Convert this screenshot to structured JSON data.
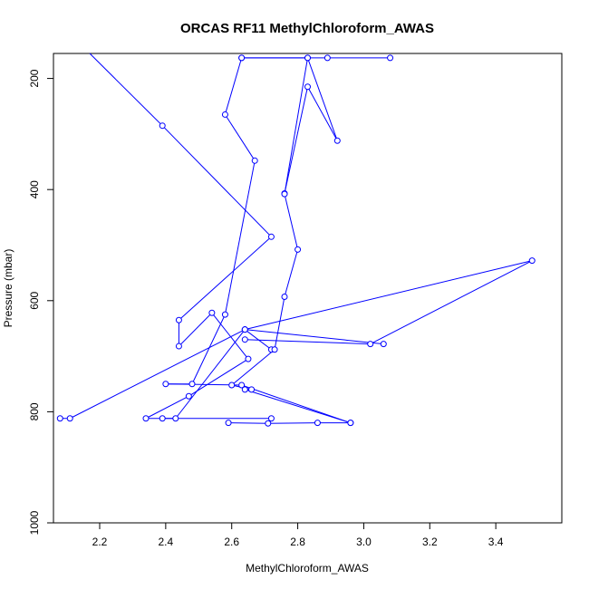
{
  "chart_data": {
    "type": "line",
    "title": "ORCAS RF11 MethylChloroform_AWAS",
    "xlabel": "MethylChloroform_AWAS",
    "ylabel": "Pressure (mbar)",
    "xlim": [
      2.06,
      3.6
    ],
    "ylim": [
      1000,
      155
    ],
    "y_reversed": true,
    "grid": false,
    "legend": "none",
    "x_ticks": [
      2.2,
      2.4,
      2.6,
      2.8,
      3.0,
      3.2,
      3.4
    ],
    "x_tick_labels": [
      "2.2",
      "2.4",
      "2.6",
      "2.8",
      "3.0",
      "3.2",
      "3.4"
    ],
    "y_ticks": [
      200,
      400,
      600,
      800,
      1000
    ],
    "y_tick_labels": [
      "200",
      "400",
      "600",
      "800",
      "1000"
    ],
    "series": [
      {
        "color": "#0000ff",
        "points_visible_start": {
          "x": 2.17,
          "y": 155,
          "hidden_marker": true
        },
        "x": [
          2.39,
          2.72,
          2.44,
          2.44,
          2.54,
          2.65,
          2.47,
          2.34,
          2.72,
          2.59,
          2.71,
          2.86,
          2.96,
          2.63,
          2.4,
          2.48,
          2.58,
          2.67,
          2.58,
          2.63,
          2.83,
          2.92,
          2.83,
          2.76,
          2.72,
          2.64,
          2.43,
          2.39,
          2.63,
          2.89,
          3.08,
          2.83,
          2.76,
          2.8,
          2.76,
          2.73,
          2.6,
          2.66,
          2.64,
          2.96,
          2.64,
          3.02,
          3.51,
          2.64,
          3.06,
          2.64,
          2.11,
          2.08
        ],
        "y": [
          285,
          485,
          635,
          682,
          622,
          705,
          772,
          812,
          812,
          820,
          821,
          820,
          820,
          752,
          750,
          750,
          625,
          348,
          265,
          163,
          163,
          312,
          215,
          407,
          688,
          652,
          812,
          812,
          163,
          163,
          163,
          163,
          408,
          508,
          593,
          688,
          752,
          760,
          760,
          820,
          670,
          678,
          528,
          652,
          678,
          652,
          812,
          812
        ],
        "connect": [
          [
            0,
            1
          ],
          [
            1,
            2
          ],
          [
            2,
            3
          ],
          [
            3,
            4
          ],
          [
            4,
            5
          ],
          [
            5,
            6
          ],
          [
            6,
            7
          ],
          [
            7,
            8
          ],
          [
            9,
            10
          ],
          [
            10,
            11
          ],
          [
            11,
            12
          ],
          [
            12,
            13
          ],
          [
            13,
            14
          ],
          [
            14,
            15
          ],
          [
            15,
            16
          ],
          [
            16,
            17
          ],
          [
            17,
            18
          ],
          [
            18,
            19
          ],
          [
            19,
            20
          ],
          [
            20,
            21
          ],
          [
            21,
            22
          ],
          [
            22,
            23
          ],
          [
            24,
            25
          ],
          [
            25,
            26
          ],
          [
            26,
            27
          ],
          [
            28,
            29
          ],
          [
            29,
            30
          ],
          [
            31,
            32
          ],
          [
            32,
            33
          ],
          [
            33,
            34
          ],
          [
            34,
            35
          ],
          [
            35,
            36
          ],
          [
            36,
            37
          ],
          [
            37,
            38
          ],
          [
            38,
            39
          ],
          [
            40,
            41
          ],
          [
            41,
            42
          ],
          [
            42,
            43
          ],
          [
            44,
            45
          ],
          [
            45,
            46
          ],
          [
            46,
            47
          ]
        ]
      }
    ]
  }
}
